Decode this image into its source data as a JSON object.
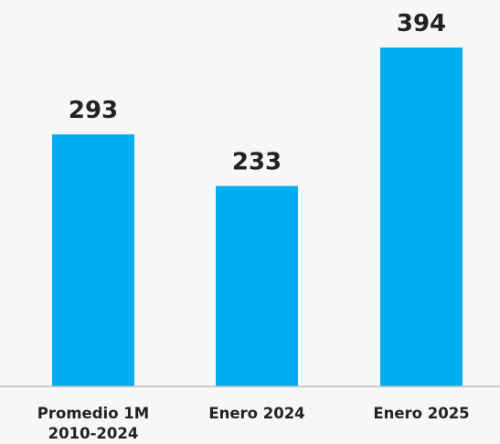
{
  "chart_data": {
    "type": "bar",
    "categories": [
      [
        "Promedio 1M",
        "2010-2024"
      ],
      [
        "Enero 2024"
      ],
      [
        "Enero 2025"
      ]
    ],
    "values": [
      293,
      233,
      394
    ],
    "value_labels": [
      "293",
      "233",
      "394"
    ],
    "title": "",
    "xlabel": "",
    "ylabel": "",
    "ylim": [
      0,
      394
    ],
    "grid": false,
    "legend": "none",
    "bar_color": "#00aeef",
    "axis_color": "#bdbdbd",
    "text_color": "#222222",
    "background": "#f7f7f8"
  }
}
